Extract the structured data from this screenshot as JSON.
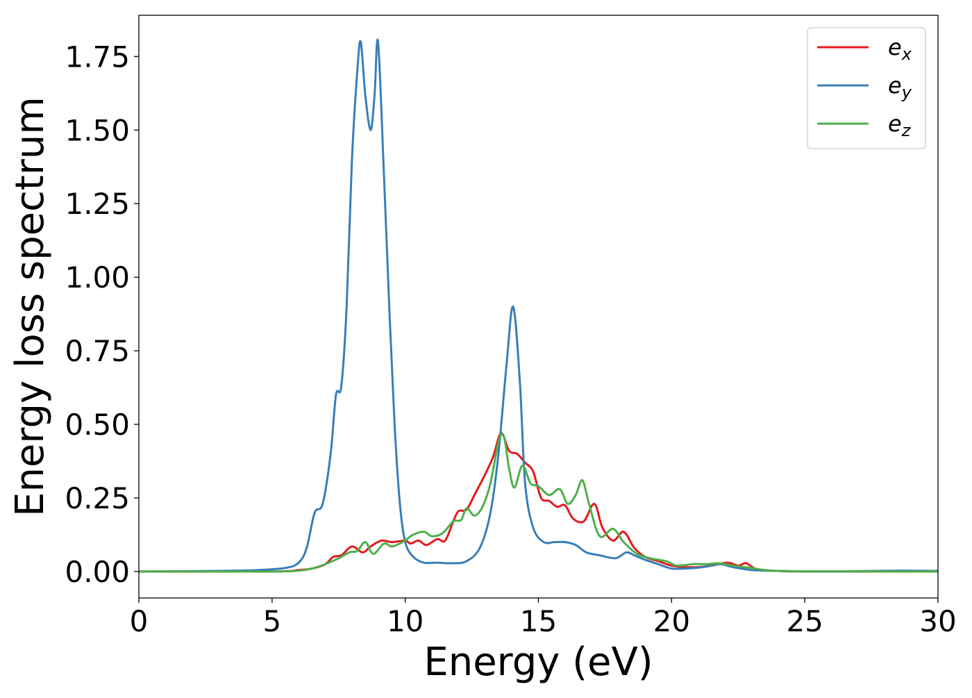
{
  "chart_data": {
    "type": "line",
    "title": "",
    "xlabel": "Energy (eV)",
    "ylabel": "Energy loss spectrum",
    "xlim": [
      0,
      30
    ],
    "ylim": [
      -0.09,
      1.89
    ],
    "xticks": [
      0,
      5,
      10,
      15,
      20,
      25,
      30
    ],
    "xtick_labels": [
      "0",
      "5",
      "10",
      "15",
      "20",
      "25",
      "30"
    ],
    "yticks": [
      0.0,
      0.25,
      0.5,
      0.75,
      1.0,
      1.25,
      1.5,
      1.75
    ],
    "ytick_labels": [
      "0.00",
      "0.25",
      "0.50",
      "0.75",
      "1.00",
      "1.25",
      "1.50",
      "1.75"
    ],
    "grid": false,
    "legend_position": "top-right",
    "series": [
      {
        "name": "e_x",
        "label_base": "e",
        "label_sub": "x",
        "color": "#e41a1c",
        "points": [
          [
            0,
            0.0
          ],
          [
            5,
            0.0
          ],
          [
            6,
            0.005
          ],
          [
            6.5,
            0.01
          ],
          [
            7,
            0.025
          ],
          [
            7.3,
            0.05
          ],
          [
            7.6,
            0.055
          ],
          [
            8.0,
            0.085
          ],
          [
            8.4,
            0.065
          ],
          [
            8.7,
            0.085
          ],
          [
            9.1,
            0.105
          ],
          [
            9.5,
            0.1
          ],
          [
            10.0,
            0.105
          ],
          [
            10.2,
            0.095
          ],
          [
            10.5,
            0.105
          ],
          [
            10.8,
            0.09
          ],
          [
            11.2,
            0.11
          ],
          [
            11.5,
            0.105
          ],
          [
            11.8,
            0.17
          ],
          [
            12.0,
            0.205
          ],
          [
            12.3,
            0.21
          ],
          [
            12.6,
            0.26
          ],
          [
            13.0,
            0.33
          ],
          [
            13.3,
            0.39
          ],
          [
            13.6,
            0.47
          ],
          [
            13.9,
            0.41
          ],
          [
            14.2,
            0.4
          ],
          [
            14.5,
            0.37
          ],
          [
            14.8,
            0.34
          ],
          [
            15.1,
            0.25
          ],
          [
            15.4,
            0.24
          ],
          [
            15.7,
            0.22
          ],
          [
            16.0,
            0.225
          ],
          [
            16.3,
            0.18
          ],
          [
            16.7,
            0.17
          ],
          [
            17.1,
            0.23
          ],
          [
            17.4,
            0.15
          ],
          [
            17.8,
            0.105
          ],
          [
            18.2,
            0.135
          ],
          [
            18.6,
            0.08
          ],
          [
            19.0,
            0.05
          ],
          [
            19.5,
            0.035
          ],
          [
            20.0,
            0.02
          ],
          [
            20.5,
            0.015
          ],
          [
            21.0,
            0.015
          ],
          [
            21.5,
            0.02
          ],
          [
            22.1,
            0.03
          ],
          [
            22.5,
            0.02
          ],
          [
            22.8,
            0.028
          ],
          [
            23.2,
            0.008
          ],
          [
            24.0,
            0.002
          ],
          [
            25.0,
            0.0
          ],
          [
            30.0,
            0.0
          ]
        ]
      },
      {
        "name": "e_y",
        "label_base": "e",
        "label_sub": "y",
        "color": "#377eb8",
        "points": [
          [
            0,
            0.0
          ],
          [
            3.0,
            0.002
          ],
          [
            4.5,
            0.005
          ],
          [
            5.5,
            0.012
          ],
          [
            6.0,
            0.03
          ],
          [
            6.3,
            0.08
          ],
          [
            6.6,
            0.2
          ],
          [
            6.9,
            0.23
          ],
          [
            7.2,
            0.4
          ],
          [
            7.4,
            0.6
          ],
          [
            7.6,
            0.63
          ],
          [
            7.8,
            0.9
          ],
          [
            8.0,
            1.4
          ],
          [
            8.2,
            1.7
          ],
          [
            8.33,
            1.8
          ],
          [
            8.5,
            1.62
          ],
          [
            8.7,
            1.5
          ],
          [
            8.85,
            1.62
          ],
          [
            8.98,
            1.8
          ],
          [
            9.2,
            1.35
          ],
          [
            9.4,
            0.9
          ],
          [
            9.6,
            0.5
          ],
          [
            9.8,
            0.23
          ],
          [
            10.0,
            0.1
          ],
          [
            10.3,
            0.05
          ],
          [
            10.7,
            0.03
          ],
          [
            11.2,
            0.03
          ],
          [
            11.8,
            0.028
          ],
          [
            12.3,
            0.035
          ],
          [
            12.8,
            0.08
          ],
          [
            13.2,
            0.2
          ],
          [
            13.5,
            0.4
          ],
          [
            13.8,
            0.7
          ],
          [
            14.05,
            0.9
          ],
          [
            14.3,
            0.65
          ],
          [
            14.5,
            0.3
          ],
          [
            14.8,
            0.15
          ],
          [
            15.2,
            0.1
          ],
          [
            15.6,
            0.1
          ],
          [
            16.0,
            0.1
          ],
          [
            16.4,
            0.09
          ],
          [
            16.8,
            0.065
          ],
          [
            17.3,
            0.055
          ],
          [
            17.9,
            0.045
          ],
          [
            18.3,
            0.065
          ],
          [
            18.6,
            0.055
          ],
          [
            19.0,
            0.04
          ],
          [
            19.5,
            0.025
          ],
          [
            20.0,
            0.01
          ],
          [
            20.5,
            0.01
          ],
          [
            21.2,
            0.015
          ],
          [
            21.8,
            0.025
          ],
          [
            22.3,
            0.015
          ],
          [
            23.0,
            0.005
          ],
          [
            24.0,
            0.002
          ],
          [
            26.0,
            0.0
          ],
          [
            28.5,
            0.003
          ],
          [
            30.0,
            0.002
          ]
        ]
      },
      {
        "name": "e_z",
        "label_base": "e",
        "label_sub": "z",
        "color": "#4daf4a",
        "points": [
          [
            0,
            0.0
          ],
          [
            5,
            0.0
          ],
          [
            6,
            0.003
          ],
          [
            6.5,
            0.01
          ],
          [
            7,
            0.025
          ],
          [
            7.5,
            0.045
          ],
          [
            7.9,
            0.065
          ],
          [
            8.2,
            0.07
          ],
          [
            8.5,
            0.1
          ],
          [
            8.8,
            0.06
          ],
          [
            9.2,
            0.095
          ],
          [
            9.5,
            0.085
          ],
          [
            9.9,
            0.1
          ],
          [
            10.3,
            0.125
          ],
          [
            10.7,
            0.135
          ],
          [
            11.0,
            0.12
          ],
          [
            11.4,
            0.13
          ],
          [
            11.8,
            0.17
          ],
          [
            12.1,
            0.175
          ],
          [
            12.3,
            0.215
          ],
          [
            12.6,
            0.19
          ],
          [
            12.9,
            0.22
          ],
          [
            13.2,
            0.3
          ],
          [
            13.5,
            0.44
          ],
          [
            13.7,
            0.46
          ],
          [
            13.9,
            0.35
          ],
          [
            14.1,
            0.285
          ],
          [
            14.4,
            0.36
          ],
          [
            14.7,
            0.3
          ],
          [
            15.0,
            0.29
          ],
          [
            15.4,
            0.26
          ],
          [
            15.8,
            0.28
          ],
          [
            16.1,
            0.23
          ],
          [
            16.4,
            0.26
          ],
          [
            16.65,
            0.31
          ],
          [
            16.9,
            0.23
          ],
          [
            17.3,
            0.12
          ],
          [
            17.8,
            0.145
          ],
          [
            18.2,
            0.1
          ],
          [
            18.7,
            0.06
          ],
          [
            19.2,
            0.045
          ],
          [
            19.8,
            0.035
          ],
          [
            20.2,
            0.02
          ],
          [
            20.8,
            0.025
          ],
          [
            21.3,
            0.025
          ],
          [
            21.8,
            0.028
          ],
          [
            22.3,
            0.02
          ],
          [
            23.0,
            0.012
          ],
          [
            23.5,
            0.005
          ],
          [
            24.5,
            0.001
          ],
          [
            30.0,
            0.0
          ]
        ]
      }
    ]
  }
}
